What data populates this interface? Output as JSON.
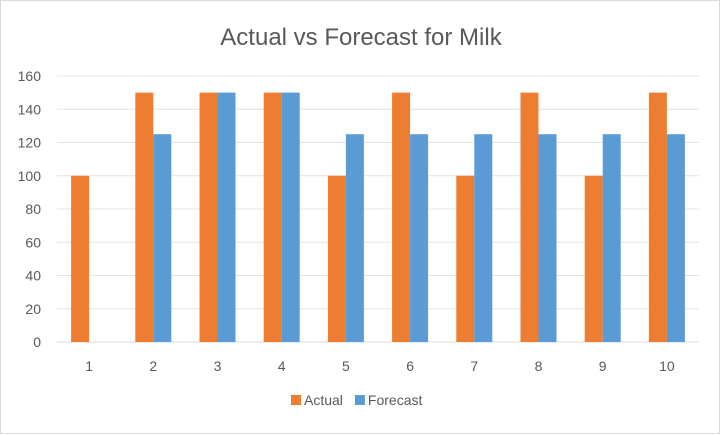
{
  "chart_data": {
    "type": "bar",
    "title": "Actual vs Forecast for Milk",
    "xlabel": "",
    "ylabel": "",
    "categories": [
      "1",
      "2",
      "3",
      "4",
      "5",
      "6",
      "7",
      "8",
      "9",
      "10"
    ],
    "series": [
      {
        "name": "Actual",
        "color": "#ed7d31",
        "values": [
          100,
          150,
          150,
          150,
          100,
          150,
          100,
          150,
          100,
          150
        ]
      },
      {
        "name": "Forecast",
        "color": "#5b9bd5",
        "values": [
          null,
          125,
          150,
          150,
          125,
          125,
          125,
          125,
          125,
          125
        ]
      }
    ],
    "ylim": [
      0,
      160
    ],
    "yticks": [
      "0",
      "20",
      "40",
      "60",
      "80",
      "100",
      "120",
      "140",
      "160"
    ],
    "grid": true,
    "legend_position": "bottom"
  }
}
